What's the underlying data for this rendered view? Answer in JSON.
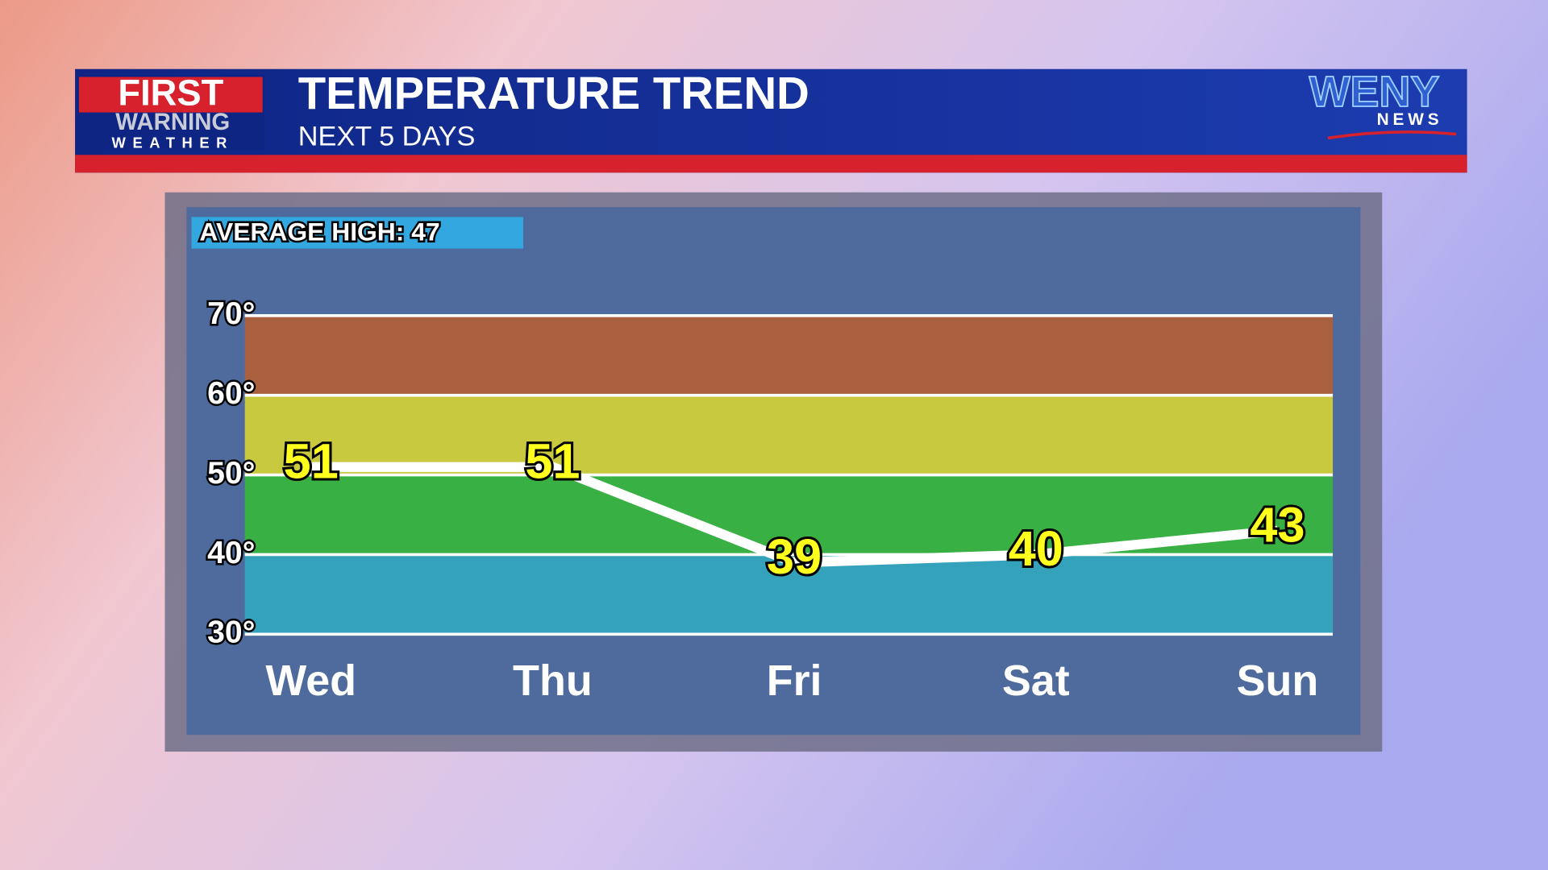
{
  "branding": {
    "logo_line1": "FIRST",
    "logo_line2": "WARNING",
    "logo_line3": "WEATHER",
    "station": "WENY",
    "station_sub": "NEWS"
  },
  "chart_data": {
    "type": "line",
    "title": "TEMPERATURE TREND",
    "subtitle": "NEXT 5 DAYS",
    "annotation": "AVERAGE HIGH: 47",
    "categories": [
      "Wed",
      "Thu",
      "Fri",
      "Sat",
      "Sun"
    ],
    "values": [
      51,
      51,
      39,
      40,
      43
    ],
    "color": "#ffffff",
    "label_color": "#ffff1e",
    "ylim": [
      30,
      70
    ],
    "yticks": [
      {
        "value": 30,
        "label": "30°"
      },
      {
        "value": 40,
        "label": "40°"
      },
      {
        "value": 50,
        "label": "50°"
      },
      {
        "value": 60,
        "label": "60°"
      },
      {
        "value": 70,
        "label": "70°"
      }
    ],
    "band_colors": [
      "#35a2bc",
      "#38b044",
      "#c9c940",
      "#aa5f3f"
    ],
    "grid": true
  }
}
